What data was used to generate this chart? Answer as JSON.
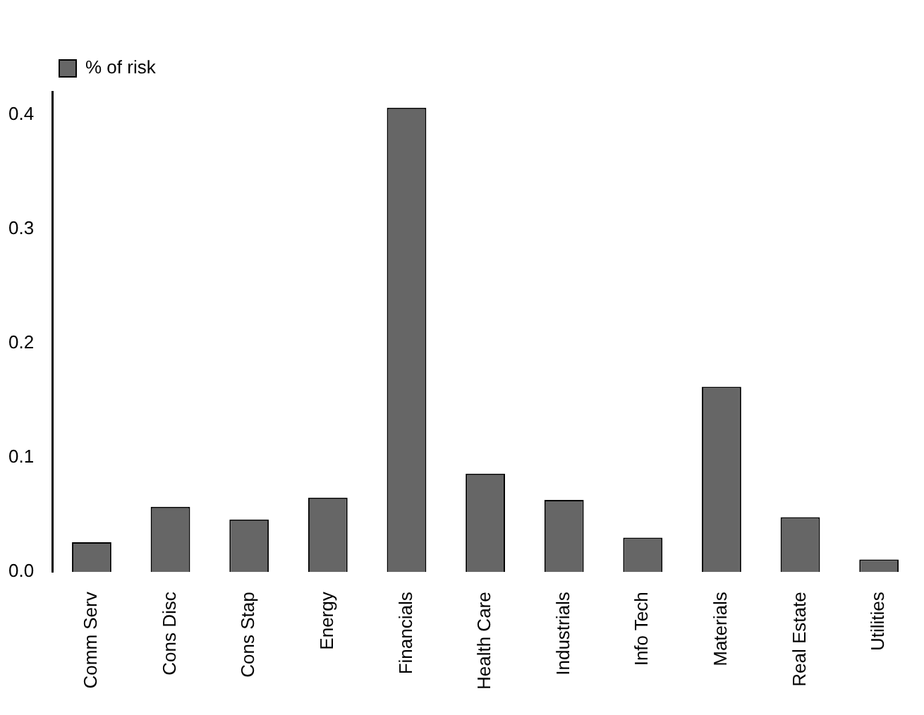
{
  "chart_data": {
    "type": "bar",
    "categories": [
      "Comm Serv",
      "Cons Disc",
      "Cons Stap",
      "Energy",
      "Financials",
      "Health Care",
      "Industrials",
      "Info Tech",
      "Materials",
      "Real Estate",
      "Utilities"
    ],
    "series": [
      {
        "name": "% of risk",
        "color": "#666666",
        "values": [
          0.026,
          0.057,
          0.046,
          0.065,
          0.406,
          0.086,
          0.063,
          0.03,
          0.162,
          0.048,
          0.011
        ]
      }
    ],
    "ylim": [
      0,
      0.42
    ],
    "yticks": [
      {
        "value": 0,
        "label": "0.0"
      },
      {
        "value": 0.1,
        "label": "0.1"
      },
      {
        "value": 0.2,
        "label": "0.2"
      },
      {
        "value": 0.3,
        "label": "0.3"
      },
      {
        "value": 0.4,
        "label": "0.4"
      }
    ],
    "grid": false,
    "legend": "top left"
  }
}
